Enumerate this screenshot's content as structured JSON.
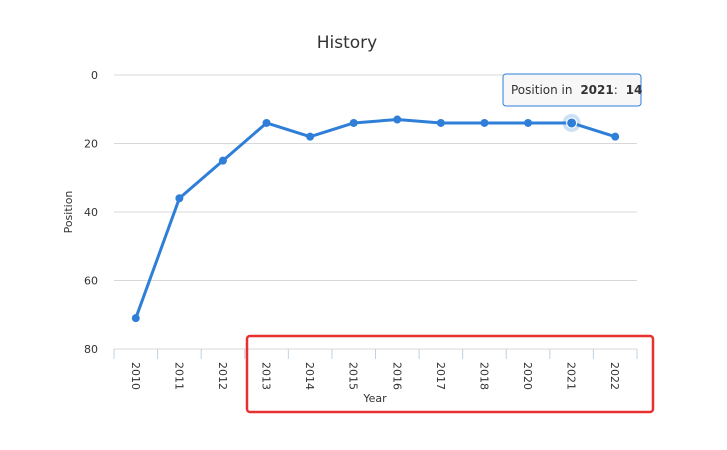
{
  "chart_data": {
    "type": "line",
    "title": "History",
    "xlabel": "Year",
    "ylabel": "Position",
    "x": [
      "2010",
      "2011",
      "2012",
      "2013",
      "2014",
      "2015",
      "2016",
      "2017",
      "2018",
      "2020",
      "2021",
      "2022"
    ],
    "series": [
      {
        "values": [
          71,
          36,
          25,
          14,
          18,
          14,
          13,
          14,
          14,
          14,
          14,
          18
        ]
      }
    ],
    "y_ticks": [
      "0",
      "20",
      "40",
      "60",
      "80"
    ],
    "ylim": [
      0,
      80
    ],
    "y_reversed": true,
    "grid": true,
    "highlighted_point": {
      "index": 10,
      "tooltip_prefix": "Position in",
      "tooltip_year": "2021",
      "tooltip_value": "14"
    }
  },
  "colors": {
    "series": "#2f7ed8",
    "highlight_box": "#e8312f",
    "grid": "#d8d8d8"
  }
}
